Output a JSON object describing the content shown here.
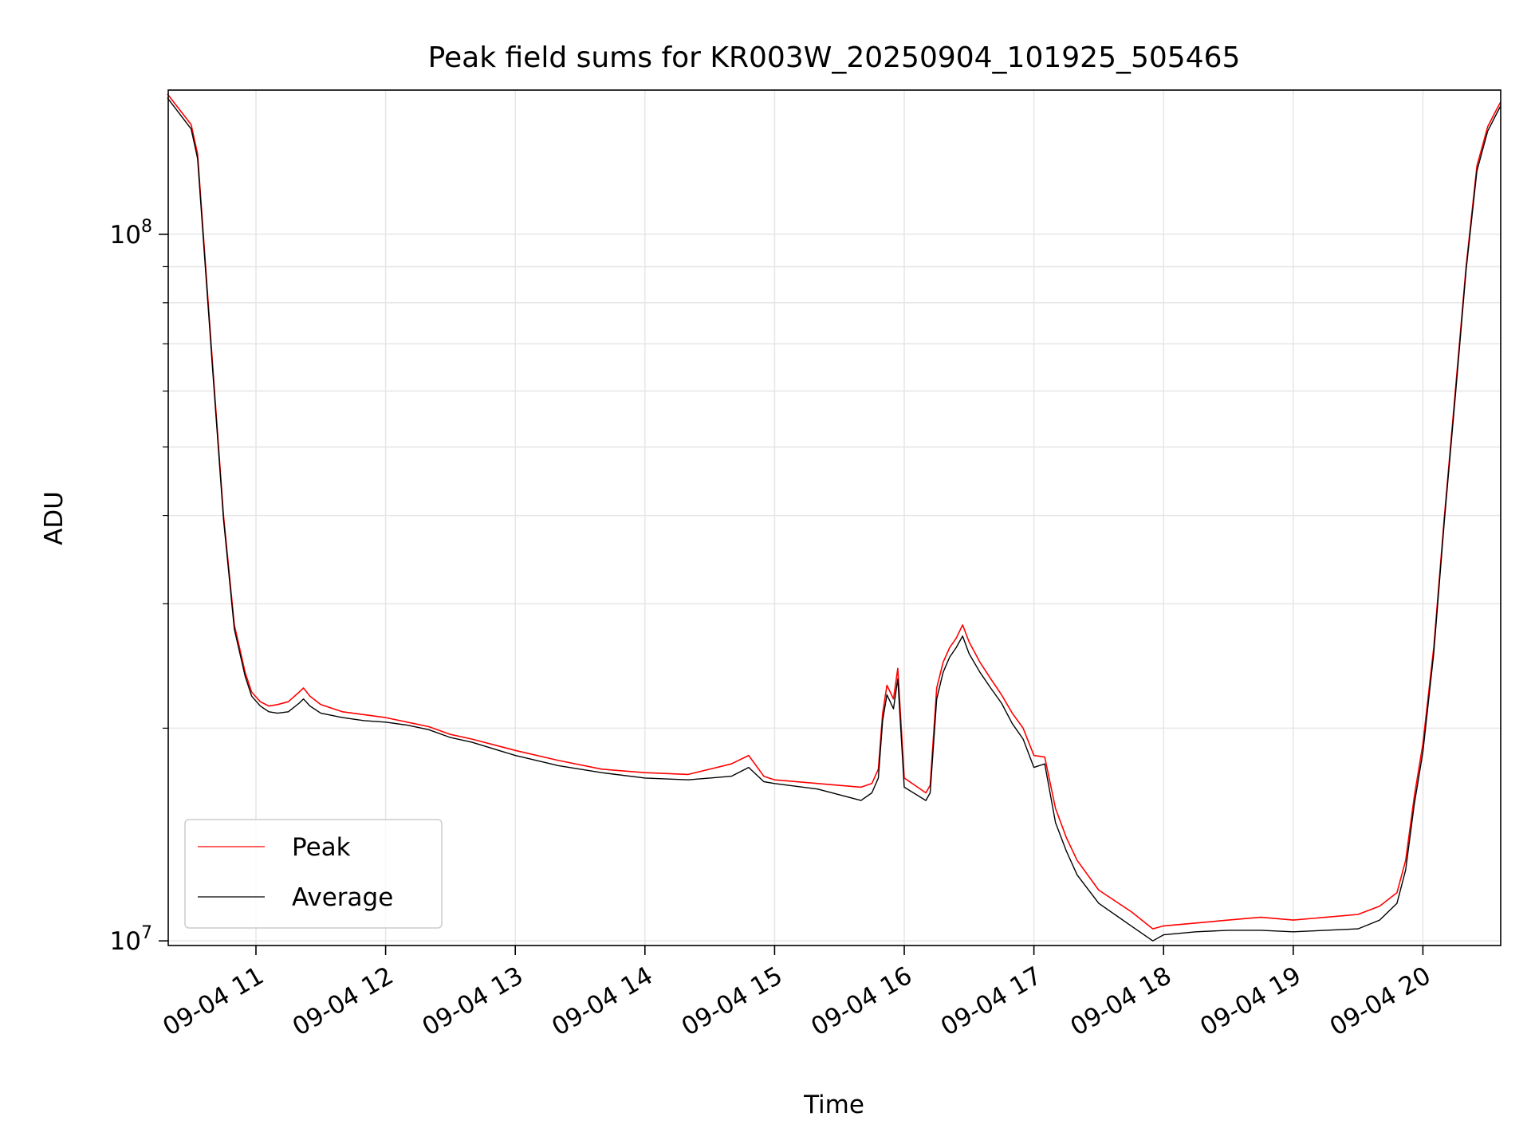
{
  "chart_data": {
    "type": "line",
    "title": "Peak field sums for KR003W_20250904_101925_505465",
    "xlabel": "Time",
    "ylabel": "ADU",
    "yscale": "log",
    "grid": true,
    "legend_position": "lower-left",
    "xlim": [
      "2025-09-04 10:19:25",
      "2025-09-04 20:36:00"
    ],
    "ylim": [
      9850000,
      160000000
    ],
    "x_tick_labels": [
      "09-04 11",
      "09-04 12",
      "09-04 13",
      "09-04 14",
      "09-04 15",
      "09-04 16",
      "09-04 17",
      "09-04 18",
      "09-04 19",
      "09-04 20"
    ],
    "y_tick_labels": [
      {
        "base": "10",
        "exp": "7"
      },
      {
        "base": "10",
        "exp": "8"
      }
    ],
    "series": [
      {
        "name": "Peak",
        "color": "#ff0000",
        "x": [
          "10:19",
          "10:30",
          "10:33",
          "10:40",
          "10:45",
          "10:50",
          "10:55",
          "10:58",
          "11:02",
          "11:06",
          "11:10",
          "11:15",
          "11:20",
          "11:22",
          "11:25",
          "11:30",
          "11:40",
          "11:50",
          "12:00",
          "12:10",
          "12:20",
          "12:30",
          "12:40",
          "13:00",
          "13:20",
          "13:40",
          "14:00",
          "14:20",
          "14:40",
          "14:48",
          "14:55",
          "15:00",
          "15:20",
          "15:40",
          "15:45",
          "15:48",
          "15:50",
          "15:52",
          "15:55",
          "15:57",
          "16:00",
          "16:10",
          "16:12",
          "16:15",
          "16:18",
          "16:21",
          "16:24",
          "16:27",
          "16:30",
          "16:35",
          "16:40",
          "16:45",
          "16:50",
          "16:55",
          "17:00",
          "17:05",
          "17:10",
          "17:15",
          "17:20",
          "17:30",
          "17:45",
          "17:55",
          "18:00",
          "18:15",
          "18:30",
          "18:45",
          "19:00",
          "19:15",
          "19:30",
          "19:40",
          "19:48",
          "19:52",
          "19:56",
          "20:00",
          "20:05",
          "20:10",
          "20:15",
          "20:20",
          "20:25",
          "20:30",
          "20:34",
          "20:36"
        ],
        "y": [
          158000000,
          143000000,
          130000000,
          65000000,
          40000000,
          28000000,
          24000000,
          22500000,
          21800000,
          21500000,
          21600000,
          21800000,
          22500000,
          22800000,
          22200000,
          21600000,
          21100000,
          20900000,
          20700000,
          20400000,
          20100000,
          19600000,
          19300000,
          18600000,
          18000000,
          17500000,
          17300000,
          17200000,
          17800000,
          18300000,
          17100000,
          16900000,
          16700000,
          16500000,
          16700000,
          17500000,
          21000000,
          23000000,
          22000000,
          24300000,
          17000000,
          16200000,
          16600000,
          22800000,
          24800000,
          26000000,
          26800000,
          28000000,
          26500000,
          24800000,
          23500000,
          22300000,
          21000000,
          20000000,
          18300000,
          18200000,
          15400000,
          14000000,
          13000000,
          11800000,
          11000000,
          10400000,
          10500000,
          10600000,
          10700000,
          10800000,
          10700000,
          10800000,
          10900000,
          11200000,
          11700000,
          13000000,
          16000000,
          19000000,
          26000000,
          40000000,
          60000000,
          90000000,
          125000000,
          142000000,
          150000000,
          154000000
        ]
      },
      {
        "name": "Average",
        "color": "#000000",
        "x": [
          "10:19",
          "10:30",
          "10:33",
          "10:40",
          "10:45",
          "10:50",
          "10:55",
          "10:58",
          "11:02",
          "11:06",
          "11:10",
          "11:15",
          "11:20",
          "11:22",
          "11:25",
          "11:30",
          "11:40",
          "11:50",
          "12:00",
          "12:10",
          "12:20",
          "12:30",
          "12:40",
          "13:00",
          "13:20",
          "13:40",
          "14:00",
          "14:20",
          "14:40",
          "14:48",
          "14:55",
          "15:00",
          "15:20",
          "15:40",
          "15:45",
          "15:48",
          "15:50",
          "15:52",
          "15:55",
          "15:57",
          "16:00",
          "16:10",
          "16:12",
          "16:15",
          "16:18",
          "16:21",
          "16:24",
          "16:27",
          "16:30",
          "16:35",
          "16:40",
          "16:45",
          "16:50",
          "16:55",
          "17:00",
          "17:05",
          "17:10",
          "17:15",
          "17:20",
          "17:30",
          "17:45",
          "17:55",
          "18:00",
          "18:15",
          "18:30",
          "18:45",
          "19:00",
          "19:15",
          "19:30",
          "19:40",
          "19:48",
          "19:52",
          "19:56",
          "20:00",
          "20:05",
          "20:10",
          "20:15",
          "20:20",
          "20:25",
          "20:30",
          "20:34",
          "20:36"
        ],
        "y": [
          156000000,
          141000000,
          128000000,
          64000000,
          39500000,
          27600000,
          23700000,
          22200000,
          21500000,
          21100000,
          21000000,
          21100000,
          21700000,
          22000000,
          21500000,
          21000000,
          20700000,
          20500000,
          20400000,
          20200000,
          19900000,
          19400000,
          19100000,
          18300000,
          17700000,
          17300000,
          17000000,
          16900000,
          17100000,
          17600000,
          16800000,
          16700000,
          16400000,
          15800000,
          16200000,
          17000000,
          20500000,
          22300000,
          21300000,
          23500000,
          16500000,
          15800000,
          16200000,
          22000000,
          24000000,
          25200000,
          26000000,
          27000000,
          25500000,
          24000000,
          22800000,
          21700000,
          20300000,
          19300000,
          17600000,
          17800000,
          14700000,
          13400000,
          12400000,
          11300000,
          10500000,
          10000000,
          10200000,
          10300000,
          10350000,
          10350000,
          10300000,
          10350000,
          10400000,
          10700000,
          11300000,
          12600000,
          15600000,
          18500000,
          25500000,
          39500000,
          59000000,
          89000000,
          123000000,
          140000000,
          148000000,
          152000000
        ]
      }
    ]
  }
}
